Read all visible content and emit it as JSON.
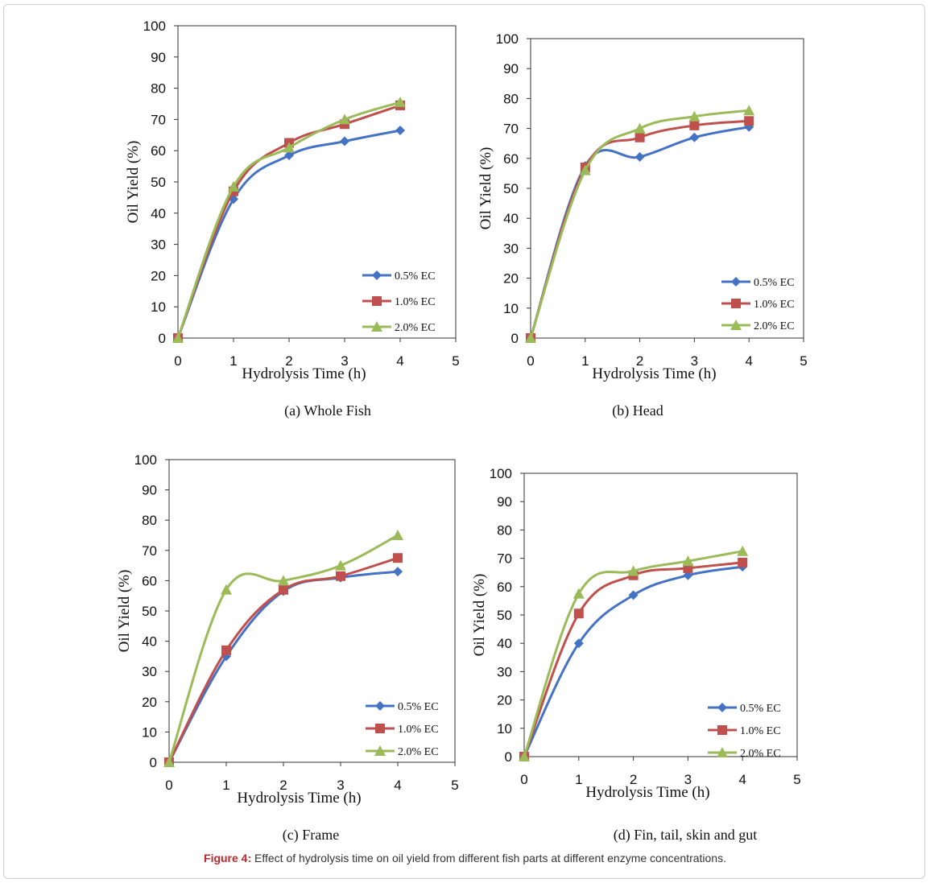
{
  "figure_caption": {
    "label": "Figure 4:",
    "text": " Effect of hydrolysis time on oil yield from different fish parts at different enzyme concentrations."
  },
  "colors": {
    "s0": "#4472C4",
    "s1": "#C0504D",
    "s2": "#9BBB59"
  },
  "chart_data": [
    {
      "type": "line",
      "caption": "(a) Whole Fish",
      "xlabel": "Hydrolysis Time (h)",
      "ylabel": "Oil Yield (%)",
      "xlim": [
        0,
        5
      ],
      "ylim": [
        0,
        100
      ],
      "xticks": [
        "0",
        "1",
        "2",
        "3",
        "4",
        "5"
      ],
      "yticks": [
        "0",
        "10",
        "20",
        "30",
        "40",
        "50",
        "60",
        "70",
        "80",
        "90",
        "100"
      ],
      "x": [
        0,
        1,
        2,
        3,
        4
      ],
      "series": [
        {
          "name": "0.5% EC",
          "marker": "diamond",
          "values": [
            0,
            44.5,
            58.5,
            63,
            66.5
          ]
        },
        {
          "name": "1.0% EC",
          "marker": "square",
          "values": [
            0,
            47,
            62.5,
            68.5,
            74.5
          ]
        },
        {
          "name": "2.0% EC",
          "marker": "triangle",
          "values": [
            0,
            48.5,
            61,
            70,
            75.5
          ]
        }
      ],
      "legend": "bottom-right"
    },
    {
      "type": "line",
      "caption": "(b) Head",
      "xlabel": "Hydrolysis Time (h)",
      "ylabel": "Oil Yield (%)",
      "xlim": [
        0,
        5
      ],
      "ylim": [
        0,
        100
      ],
      "xticks": [
        "0",
        "1",
        "2",
        "3",
        "4",
        "5"
      ],
      "yticks": [
        "0",
        "10",
        "20",
        "30",
        "40",
        "50",
        "60",
        "70",
        "80",
        "90",
        "100"
      ],
      "x": [
        0,
        1,
        2,
        3,
        4
      ],
      "series": [
        {
          "name": "0.5% EC",
          "marker": "diamond",
          "values": [
            0,
            57.5,
            60.5,
            67,
            70.5
          ]
        },
        {
          "name": "1.0% EC",
          "marker": "square",
          "values": [
            0,
            57,
            67,
            71,
            72.5
          ]
        },
        {
          "name": "2.0% EC",
          "marker": "triangle",
          "values": [
            0,
            56,
            70,
            74,
            76
          ]
        }
      ],
      "legend": "bottom-right"
    },
    {
      "type": "line",
      "caption": "(c) Frame",
      "xlabel": "Hydrolysis Time (h)",
      "ylabel": "Oil Yield (%)",
      "xlim": [
        0,
        5
      ],
      "ylim": [
        0,
        100
      ],
      "xticks": [
        "0",
        "1",
        "2",
        "3",
        "4",
        "5"
      ],
      "yticks": [
        "0",
        "10",
        "20",
        "30",
        "40",
        "50",
        "60",
        "70",
        "80",
        "90",
        "100"
      ],
      "x": [
        0,
        1,
        2,
        3,
        4
      ],
      "series": [
        {
          "name": "0.5% EC",
          "marker": "diamond",
          "values": [
            0,
            35,
            56.5,
            61,
            63
          ]
        },
        {
          "name": "1.0% EC",
          "marker": "square",
          "values": [
            0,
            37,
            57,
            61.5,
            67.5
          ]
        },
        {
          "name": "2.0% EC",
          "marker": "triangle",
          "values": [
            0,
            57,
            60,
            65,
            75
          ]
        }
      ],
      "legend": "bottom-right"
    },
    {
      "type": "line",
      "caption": "(d) Fin, tail, skin and gut",
      "xlabel": "Hydrolysis Time (h)",
      "ylabel": "Oil Yield (%)",
      "xlim": [
        0,
        5
      ],
      "ylim": [
        0,
        100
      ],
      "xticks": [
        "0",
        "1",
        "2",
        "3",
        "4",
        "5"
      ],
      "yticks": [
        "0",
        "10",
        "20",
        "30",
        "40",
        "50",
        "60",
        "70",
        "80",
        "90",
        "100"
      ],
      "x": [
        0,
        1,
        2,
        3,
        4
      ],
      "series": [
        {
          "name": "0.5% EC",
          "marker": "diamond",
          "values": [
            0,
            40,
            57,
            64,
            67
          ]
        },
        {
          "name": "1.0% EC",
          "marker": "square",
          "values": [
            0,
            50.5,
            64,
            66.5,
            68.5
          ]
        },
        {
          "name": "2.0% EC",
          "marker": "triangle",
          "values": [
            0,
            57.5,
            65.5,
            69,
            72.5
          ]
        }
      ],
      "legend": "bottom-right"
    }
  ]
}
